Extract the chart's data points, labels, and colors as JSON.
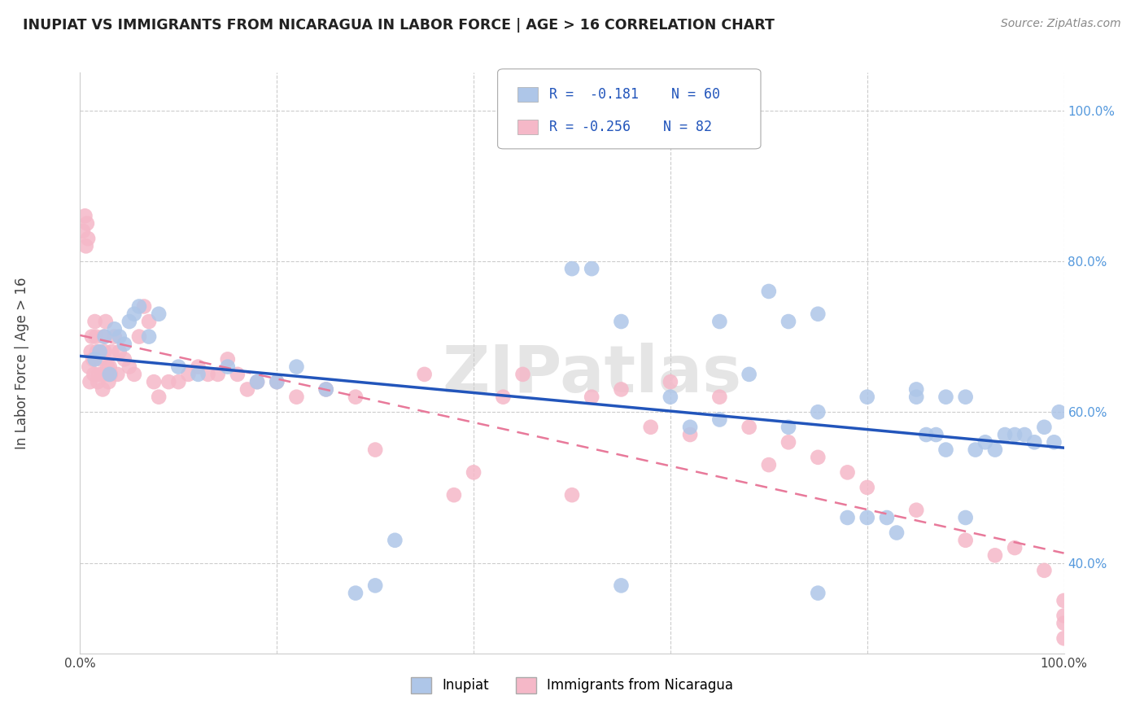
{
  "title": "INUPIAT VS IMMIGRANTS FROM NICARAGUA IN LABOR FORCE | AGE > 16 CORRELATION CHART",
  "source": "Source: ZipAtlas.com",
  "ylabel": "In Labor Force | Age > 16",
  "xlim": [
    0,
    100
  ],
  "ylim": [
    28,
    105
  ],
  "legend_r1": "R =  -0.181",
  "legend_n1": "N = 60",
  "legend_r2": "R = -0.256",
  "legend_n2": "N = 82",
  "color_blue": "#aec6e8",
  "color_pink": "#f5b8c8",
  "line_blue": "#2255bb",
  "line_pink": "#e8799a",
  "bg_color": "#ffffff",
  "grid_color": "#cccccc",
  "watermark": "ZIPatlas",
  "inupiat_x": [
    1.5,
    2.0,
    2.5,
    3.0,
    3.5,
    4.0,
    4.5,
    5.0,
    5.5,
    6.0,
    7.0,
    8.0,
    10.0,
    12.0,
    15.0,
    18.0,
    20.0,
    22.0,
    25.0,
    28.0,
    30.0,
    32.0,
    50.0,
    52.0,
    55.0,
    60.0,
    65.0,
    68.0,
    70.0,
    72.0,
    75.0,
    78.0,
    80.0,
    82.0,
    83.0,
    85.0,
    86.0,
    87.0,
    88.0,
    90.0,
    91.0,
    92.0,
    93.0,
    94.0,
    95.0,
    96.0,
    97.0,
    98.0,
    99.0,
    99.5,
    62.0,
    65.0,
    72.0,
    75.0,
    80.0,
    85.0,
    88.0,
    90.0,
    55.0,
    75.0
  ],
  "inupiat_y": [
    67.0,
    68.0,
    70.0,
    65.0,
    71.0,
    70.0,
    69.0,
    72.0,
    73.0,
    74.0,
    70.0,
    73.0,
    66.0,
    65.0,
    66.0,
    64.0,
    64.0,
    66.0,
    63.0,
    36.0,
    37.0,
    43.0,
    79.0,
    79.0,
    72.0,
    62.0,
    72.0,
    65.0,
    76.0,
    72.0,
    73.0,
    46.0,
    46.0,
    46.0,
    44.0,
    62.0,
    57.0,
    57.0,
    55.0,
    46.0,
    55.0,
    56.0,
    55.0,
    57.0,
    57.0,
    57.0,
    56.0,
    58.0,
    56.0,
    60.0,
    58.0,
    59.0,
    58.0,
    60.0,
    62.0,
    63.0,
    62.0,
    62.0,
    37.0,
    36.0
  ],
  "nicaragua_x": [
    0.3,
    0.5,
    0.6,
    0.7,
    0.8,
    0.9,
    1.0,
    1.1,
    1.2,
    1.3,
    1.4,
    1.5,
    1.6,
    1.7,
    1.8,
    1.9,
    2.0,
    2.1,
    2.2,
    2.3,
    2.4,
    2.5,
    2.6,
    2.7,
    2.8,
    2.9,
    3.0,
    3.1,
    3.2,
    3.5,
    3.8,
    4.0,
    4.5,
    5.0,
    5.5,
    6.0,
    6.5,
    7.0,
    7.5,
    8.0,
    9.0,
    10.0,
    11.0,
    12.0,
    13.0,
    14.0,
    15.0,
    16.0,
    17.0,
    18.0,
    20.0,
    22.0,
    25.0,
    28.0,
    30.0,
    35.0,
    38.0,
    40.0,
    43.0,
    45.0,
    50.0,
    52.0,
    55.0,
    58.0,
    60.0,
    62.0,
    65.0,
    68.0,
    70.0,
    72.0,
    75.0,
    78.0,
    80.0,
    85.0,
    90.0,
    93.0,
    95.0,
    98.0,
    100.0,
    100.0,
    100.0,
    100.0
  ],
  "nicaragua_y": [
    84.0,
    86.0,
    82.0,
    85.0,
    83.0,
    66.0,
    64.0,
    68.0,
    70.0,
    67.0,
    65.0,
    72.0,
    70.0,
    68.0,
    64.0,
    65.0,
    68.0,
    67.0,
    65.0,
    63.0,
    70.0,
    68.0,
    72.0,
    65.0,
    66.0,
    64.0,
    66.0,
    65.0,
    68.0,
    70.0,
    65.0,
    68.0,
    67.0,
    66.0,
    65.0,
    70.0,
    74.0,
    72.0,
    64.0,
    62.0,
    64.0,
    64.0,
    65.0,
    66.0,
    65.0,
    65.0,
    67.0,
    65.0,
    63.0,
    64.0,
    64.0,
    62.0,
    63.0,
    62.0,
    55.0,
    65.0,
    49.0,
    52.0,
    62.0,
    65.0,
    49.0,
    62.0,
    63.0,
    58.0,
    64.0,
    57.0,
    62.0,
    58.0,
    53.0,
    56.0,
    54.0,
    52.0,
    50.0,
    47.0,
    43.0,
    41.0,
    42.0,
    39.0,
    35.0,
    33.0,
    32.0,
    30.0
  ]
}
